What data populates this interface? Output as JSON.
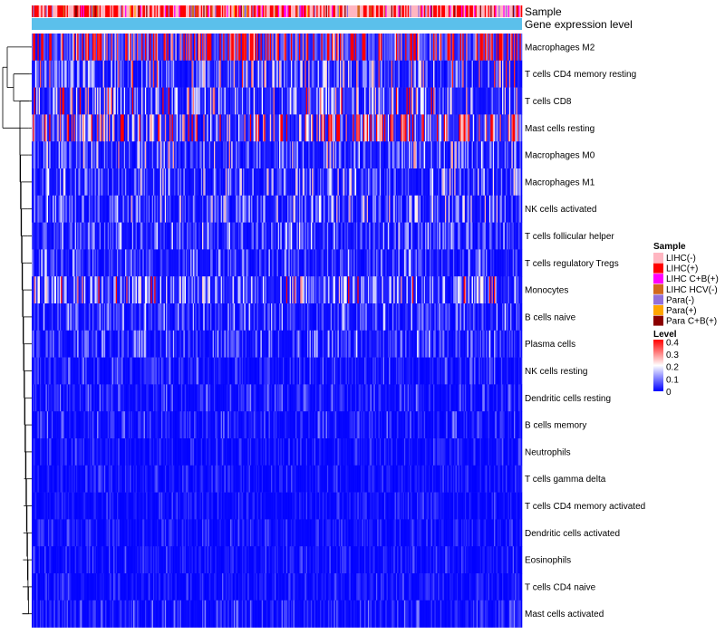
{
  "chart_data": {
    "type": "heatmap",
    "title": "",
    "annotations": [
      "Sample",
      "Gene expression level"
    ],
    "rows": [
      "Macrophages M2",
      "T cells CD4 memory resting",
      "T cells CD8",
      "Mast cells resting",
      "Macrophages M0",
      "Macrophages M1",
      "NK cells activated",
      "T cells follicular helper",
      "T cells regulatory  Tregs",
      "Monocytes",
      "B cells naive",
      "Plasma cells",
      "NK cells resting",
      "Dendritic cells resting",
      "B cells memory",
      "Neutrophils",
      "T cells gamma delta",
      "T cells CD4 memory activated",
      "Dendritic cells activated",
      "Eosinophils",
      "T cells CD4 naive",
      "Mast cells activated"
    ],
    "approx_mean_level": [
      0.32,
      0.1,
      0.13,
      0.2,
      0.08,
      0.07,
      0.07,
      0.06,
      0.05,
      0.12,
      0.05,
      0.05,
      0.03,
      0.03,
      0.03,
      0.02,
      0.02,
      0.02,
      0.02,
      0.02,
      0.02,
      0.03
    ],
    "sample_count": 420,
    "sample_legend": {
      "title": "Sample",
      "entries": [
        {
          "label": "LIHC(-)",
          "color": "#ffb6c1"
        },
        {
          "label": "LIHC(+)",
          "color": "#ff0000"
        },
        {
          "label": "LIHC C+B(+)",
          "color": "#ff00ff"
        },
        {
          "label": "LIHC HCV(-)",
          "color": "#d2691e"
        },
        {
          "label": "Para(-)",
          "color": "#9370db"
        },
        {
          "label": "Para(+)",
          "color": "#ffa500"
        },
        {
          "label": "Para C+B(+)",
          "color": "#8b0000"
        }
      ]
    },
    "level_legend": {
      "title": "Level",
      "ticks": [
        "0.4",
        "0.3",
        "0.2",
        "0.1",
        "0"
      ],
      "min": 0,
      "max": 0.4,
      "colors": [
        "#0000ff",
        "#ffffff",
        "#ff0000"
      ]
    },
    "gene_expression_color": "#5bc0eb",
    "dendrogram": "row clustering tree on left side"
  }
}
